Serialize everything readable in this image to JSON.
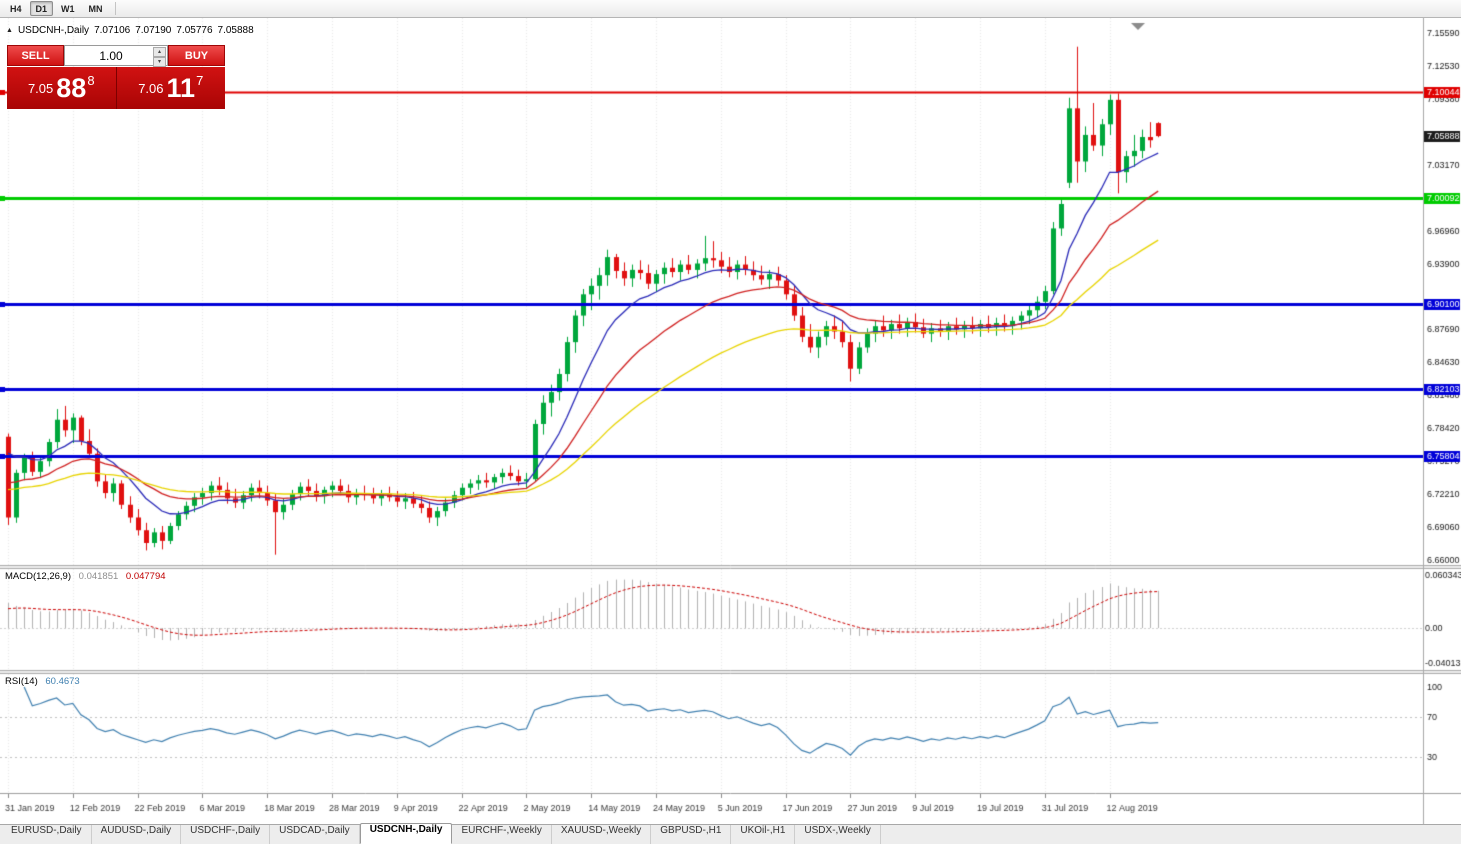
{
  "toolbar": {
    "periods": [
      {
        "label": "H4",
        "active": false
      },
      {
        "label": "D1",
        "active": true
      },
      {
        "label": "W1",
        "active": false
      },
      {
        "label": "MN",
        "active": false
      }
    ]
  },
  "chart_header": {
    "marker_glyph": "▲",
    "symbol": "USDCNH-,Daily",
    "open": "7.07106",
    "high": "7.07190",
    "low": "7.05776",
    "close": "7.05888"
  },
  "trade_panel": {
    "sell_label": "SELL",
    "buy_label": "BUY",
    "volume": "1.00",
    "up_glyph": "▴",
    "down_glyph": "▾",
    "bid_small": "7.05",
    "bid_big": "88",
    "bid_sup": "8",
    "ask_small": "7.06",
    "ask_big": "11",
    "ask_sup": "7"
  },
  "indicators": {
    "macd_label": "MACD(12,26,9)",
    "macd_value_main": "0.041851",
    "macd_value_signal": "0.047794",
    "rsi_label": "RSI(14)",
    "rsi_value": "60.4673"
  },
  "tabs": [
    {
      "label": "EURUSD-,Daily",
      "active": false
    },
    {
      "label": "AUDUSD-,Daily",
      "active": false
    },
    {
      "label": "USDCHF-,Daily",
      "active": false
    },
    {
      "label": "USDCAD-,Daily",
      "active": false
    },
    {
      "label": "USDCNH-,Daily",
      "active": true
    },
    {
      "label": "EURCHF-,Weekly",
      "active": false
    },
    {
      "label": "XAUUSD-,Weekly",
      "active": false
    },
    {
      "label": "GBPUSD-,H1",
      "active": false
    },
    {
      "label": "UKOil-,H1",
      "active": false
    },
    {
      "label": "USDX-,Weekly",
      "active": false
    }
  ],
  "chart_data": {
    "type": "candlestick",
    "title": "USDCNH-,Daily",
    "price_axis": {
      "min": 6.66,
      "max": 7.1559,
      "ticks": [
        "7.15590",
        "7.12530",
        "7.09380",
        "7.03170",
        "6.96960",
        "6.93900",
        "6.87690",
        "6.84630",
        "6.81480",
        "6.78420",
        "6.75270",
        "6.72210",
        "6.69060",
        "6.66000"
      ]
    },
    "current_price": "7.05888",
    "hlines": [
      {
        "value": 7.10044,
        "label": "7.10044",
        "color": "#e00000",
        "width": 2
      },
      {
        "value": 7.00092,
        "label": "7.00092",
        "color": "#00cc00",
        "width": 3
      },
      {
        "value": 6.901,
        "label": "6.90100",
        "color": "#0000d8",
        "width": 3
      },
      {
        "value": 6.82103,
        "label": "6.82103",
        "color": "#0000d8",
        "width": 3
      },
      {
        "value": 6.75804,
        "label": "6.75804",
        "color": "#0000d8",
        "width": 3
      }
    ],
    "styles": {
      "bull": "#00a73c",
      "bear": "#e01010"
    },
    "ma_lines": [
      {
        "period": 10,
        "color": "#2a2ab8"
      },
      {
        "period": 21,
        "color": "#d02020"
      },
      {
        "period": 43,
        "color": "#e8d400"
      }
    ],
    "macd": {
      "label": "MACD(12,26,9)",
      "fast": 12,
      "slow": 26,
      "signal": 9,
      "bar_color": "#b2b2b2",
      "signal_color": "#cc0000",
      "axis": [
        {
          "v": 0.060343,
          "t": "0.060343"
        },
        {
          "v": 0,
          "t": "0.00"
        },
        {
          "v": -0.0401365,
          "t": "-0.040136"
        }
      ]
    },
    "rsi": {
      "period": 14,
      "color": "#4080b0",
      "levels": [
        70,
        30
      ],
      "axis": [
        {
          "v": 100,
          "t": "100"
        },
        {
          "v": 70,
          "t": "70"
        },
        {
          "v": 30,
          "t": "30"
        }
      ]
    },
    "x_axis": {
      "label_indices": [
        0,
        8,
        16,
        24,
        32,
        40,
        48,
        56,
        64,
        72,
        80,
        88,
        96,
        104,
        112,
        120,
        128,
        136
      ],
      "labels": [
        "31 Jan 2019",
        "12 Feb 2019",
        "22 Feb 2019",
        "6 Mar 2019",
        "18 Mar 2019",
        "28 Mar 2019",
        "9 Apr 2019",
        "22 Apr 2019",
        "2 May 2019",
        "14 May 2019",
        "24 May 2019",
        "5 Jun 2019",
        "17 Jun 2019",
        "27 Jun 2019",
        "9 Jul 2019",
        "19 Jul 2019",
        "31 Jul 2019",
        "12 Aug 2019"
      ]
    },
    "candles": [
      [
        6.776,
        6.779,
        6.693,
        6.7
      ],
      [
        6.7,
        6.745,
        6.695,
        6.742
      ],
      [
        6.742,
        6.76,
        6.735,
        6.756
      ],
      [
        6.756,
        6.762,
        6.739,
        6.743
      ],
      [
        6.743,
        6.756,
        6.737,
        6.753
      ],
      [
        6.753,
        6.774,
        6.748,
        6.771
      ],
      [
        6.771,
        6.802,
        6.765,
        6.792
      ],
      [
        6.792,
        6.805,
        6.776,
        6.782
      ],
      [
        6.782,
        6.798,
        6.77,
        6.794
      ],
      [
        6.794,
        6.796,
        6.768,
        6.772
      ],
      [
        6.772,
        6.783,
        6.756,
        6.76
      ],
      [
        6.76,
        6.765,
        6.729,
        6.734
      ],
      [
        6.734,
        6.74,
        6.718,
        6.723
      ],
      [
        6.723,
        6.737,
        6.715,
        6.732
      ],
      [
        6.732,
        6.735,
        6.708,
        6.712
      ],
      [
        6.712,
        6.72,
        6.695,
        6.7
      ],
      [
        6.7,
        6.708,
        6.683,
        6.688
      ],
      [
        6.688,
        6.695,
        6.669,
        6.676
      ],
      [
        6.676,
        6.69,
        6.672,
        6.686
      ],
      [
        6.686,
        6.692,
        6.67,
        6.678
      ],
      [
        6.678,
        6.695,
        6.675,
        6.692
      ],
      [
        6.692,
        6.706,
        6.688,
        6.703
      ],
      [
        6.703,
        6.715,
        6.698,
        6.711
      ],
      [
        6.711,
        6.723,
        6.705,
        6.719
      ],
      [
        6.719,
        6.728,
        6.712,
        6.723
      ],
      [
        6.723,
        6.734,
        6.716,
        6.73
      ],
      [
        6.73,
        6.738,
        6.721,
        6.726
      ],
      [
        6.726,
        6.733,
        6.713,
        6.718
      ],
      [
        6.718,
        6.727,
        6.709,
        6.714
      ],
      [
        6.714,
        6.725,
        6.708,
        6.721
      ],
      [
        6.721,
        6.732,
        6.715,
        6.728
      ],
      [
        6.728,
        6.735,
        6.718,
        6.723
      ],
      [
        6.723,
        6.73,
        6.711,
        6.716
      ],
      [
        6.716,
        6.722,
        6.665,
        6.705
      ],
      [
        6.705,
        6.718,
        6.698,
        6.712
      ],
      [
        6.712,
        6.726,
        6.707,
        6.722
      ],
      [
        6.722,
        6.733,
        6.716,
        6.729
      ],
      [
        6.729,
        6.736,
        6.72,
        6.725
      ],
      [
        6.725,
        6.732,
        6.715,
        6.72
      ],
      [
        6.72,
        6.729,
        6.713,
        6.726
      ],
      [
        6.726,
        6.734,
        6.719,
        6.73
      ],
      [
        6.73,
        6.736,
        6.721,
        6.725
      ],
      [
        6.725,
        6.731,
        6.714,
        6.719
      ],
      [
        6.719,
        6.727,
        6.712,
        6.723
      ],
      [
        6.723,
        6.73,
        6.716,
        6.721
      ],
      [
        6.721,
        6.728,
        6.713,
        6.718
      ],
      [
        6.718,
        6.726,
        6.711,
        6.722
      ],
      [
        6.722,
        6.729,
        6.715,
        6.719
      ],
      [
        6.719,
        6.725,
        6.71,
        6.715
      ],
      [
        6.715,
        6.723,
        6.708,
        6.718
      ],
      [
        6.718,
        6.724,
        6.709,
        6.713
      ],
      [
        6.713,
        6.72,
        6.704,
        6.709
      ],
      [
        6.709,
        6.715,
        6.695,
        6.7
      ],
      [
        6.7,
        6.71,
        6.692,
        6.706
      ],
      [
        6.706,
        6.718,
        6.701,
        6.714
      ],
      [
        6.714,
        6.725,
        6.709,
        6.721
      ],
      [
        6.721,
        6.732,
        6.716,
        6.728
      ],
      [
        6.728,
        6.736,
        6.722,
        6.732
      ],
      [
        6.732,
        6.74,
        6.726,
        6.735
      ],
      [
        6.735,
        6.742,
        6.728,
        6.733
      ],
      [
        6.733,
        6.741,
        6.727,
        6.738
      ],
      [
        6.738,
        6.746,
        6.732,
        6.742
      ],
      [
        6.742,
        6.749,
        6.735,
        6.739
      ],
      [
        6.739,
        6.745,
        6.73,
        6.734
      ],
      [
        6.734,
        6.742,
        6.728,
        6.736
      ],
      [
        6.736,
        6.792,
        6.734,
        6.788
      ],
      [
        6.788,
        6.815,
        6.778,
        6.808
      ],
      [
        6.808,
        6.825,
        6.795,
        6.818
      ],
      [
        6.818,
        6.84,
        6.81,
        6.835
      ],
      [
        6.835,
        6.87,
        6.828,
        6.865
      ],
      [
        6.865,
        6.895,
        6.855,
        6.89
      ],
      [
        6.89,
        6.915,
        6.88,
        6.91
      ],
      [
        6.91,
        6.925,
        6.895,
        6.918
      ],
      [
        6.918,
        6.935,
        6.905,
        6.928
      ],
      [
        6.928,
        6.952,
        6.918,
        6.945
      ],
      [
        6.945,
        6.948,
        6.925,
        6.932
      ],
      [
        6.932,
        6.94,
        6.918,
        6.925
      ],
      [
        6.925,
        6.938,
        6.917,
        6.933
      ],
      [
        6.933,
        6.942,
        6.924,
        6.93
      ],
      [
        6.93,
        6.938,
        6.915,
        6.92
      ],
      [
        6.92,
        6.933,
        6.912,
        6.929
      ],
      [
        6.929,
        6.94,
        6.92,
        6.935
      ],
      [
        6.935,
        6.944,
        6.926,
        6.931
      ],
      [
        6.931,
        6.942,
        6.923,
        6.938
      ],
      [
        6.938,
        6.947,
        6.929,
        6.933
      ],
      [
        6.933,
        6.943,
        6.925,
        6.939
      ],
      [
        6.939,
        6.965,
        6.932,
        6.944
      ],
      [
        6.944,
        6.96,
        6.935,
        6.942
      ],
      [
        6.942,
        6.95,
        6.93,
        6.936
      ],
      [
        6.936,
        6.945,
        6.926,
        6.931
      ],
      [
        6.931,
        6.942,
        6.924,
        6.938
      ],
      [
        6.938,
        6.946,
        6.928,
        6.933
      ],
      [
        6.933,
        6.941,
        6.923,
        6.928
      ],
      [
        6.928,
        6.937,
        6.919,
        6.924
      ],
      [
        6.924,
        6.933,
        6.915,
        6.929
      ],
      [
        6.929,
        6.936,
        6.918,
        6.923
      ],
      [
        6.923,
        6.928,
        6.905,
        6.91
      ],
      [
        6.91,
        6.918,
        6.885,
        6.89
      ],
      [
        6.89,
        6.898,
        6.865,
        6.87
      ],
      [
        6.87,
        6.882,
        6.855,
        6.86
      ],
      [
        6.86,
        6.875,
        6.85,
        6.87
      ],
      [
        6.87,
        6.885,
        6.862,
        6.88
      ],
      [
        6.88,
        6.89,
        6.868,
        6.875
      ],
      [
        6.875,
        6.885,
        6.86,
        6.865
      ],
      [
        6.865,
        6.872,
        6.828,
        6.84
      ],
      [
        6.84,
        6.865,
        6.835,
        6.86
      ],
      [
        6.86,
        6.878,
        6.855,
        6.873
      ],
      [
        6.873,
        6.885,
        6.865,
        6.88
      ],
      [
        6.88,
        6.89,
        6.87,
        6.876
      ],
      [
        6.876,
        6.886,
        6.868,
        6.882
      ],
      [
        6.882,
        6.891,
        6.873,
        6.878
      ],
      [
        6.878,
        6.888,
        6.87,
        6.884
      ],
      [
        6.884,
        6.892,
        6.874,
        6.879
      ],
      [
        6.879,
        6.887,
        6.869,
        6.873
      ],
      [
        6.873,
        6.883,
        6.865,
        6.878
      ],
      [
        6.878,
        6.886,
        6.87,
        6.875
      ],
      [
        6.875,
        6.884,
        6.867,
        6.88
      ],
      [
        6.88,
        6.888,
        6.872,
        6.877
      ],
      [
        6.877,
        6.885,
        6.869,
        6.881
      ],
      [
        6.881,
        6.889,
        6.873,
        6.878
      ],
      [
        6.878,
        6.886,
        6.87,
        6.882
      ],
      [
        6.882,
        6.89,
        6.874,
        6.879
      ],
      [
        6.879,
        6.888,
        6.871,
        6.883
      ],
      [
        6.883,
        6.891,
        6.875,
        6.88
      ],
      [
        6.88,
        6.889,
        6.872,
        6.885
      ],
      [
        6.885,
        6.894,
        6.877,
        6.89
      ],
      [
        6.89,
        6.9,
        6.882,
        6.895
      ],
      [
        6.895,
        6.908,
        6.888,
        6.903
      ],
      [
        6.903,
        6.918,
        6.896,
        6.913
      ],
      [
        6.913,
        6.978,
        6.91,
        6.972
      ],
      [
        6.972,
        7.0,
        6.965,
        6.995
      ],
      [
        7.015,
        7.095,
        7.01,
        7.085
      ],
      [
        7.085,
        7.143,
        7.015,
        7.035
      ],
      [
        7.035,
        7.068,
        7.025,
        7.06
      ],
      [
        7.06,
        7.09,
        7.045,
        7.05
      ],
      [
        7.05,
        7.075,
        7.04,
        7.07
      ],
      [
        7.07,
        7.098,
        7.06,
        7.093
      ],
      [
        7.093,
        7.099,
        7.005,
        7.025
      ],
      [
        7.025,
        7.045,
        7.015,
        7.04
      ],
      [
        7.04,
        7.06,
        7.03,
        7.045
      ],
      [
        7.045,
        7.065,
        7.038,
        7.058
      ],
      [
        7.058,
        7.072,
        7.048,
        7.055
      ],
      [
        7.0711,
        7.0719,
        7.0578,
        7.0589
      ]
    ]
  }
}
